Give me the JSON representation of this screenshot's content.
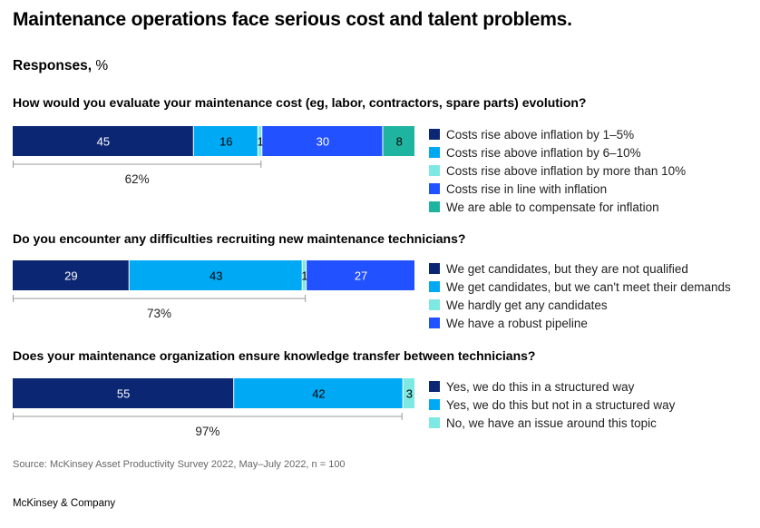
{
  "title": "Maintenance operations face serious cost and talent problems.",
  "subtitle_bold": "Responses,",
  "subtitle_unit": "%",
  "source": "Source: McKinsey Asset Productivity Survey 2022, May–July 2022, n = 100",
  "brand": "McKinsey & Company",
  "chart_data": [
    {
      "type": "bar",
      "orientation": "horizontal-stacked",
      "question": "How would you evaluate your maintenance cost (eg, labor, contractors, spare parts) evolution?",
      "series": [
        {
          "name": "Costs rise above inflation by 1–5%",
          "value": 45,
          "color": "#0b2672"
        },
        {
          "name": "Costs rise above inflation by 6–10%",
          "value": 16,
          "color": "#00a9f4"
        },
        {
          "name": "Costs rise above inflation by more than 10%",
          "value": 1,
          "color": "#7ee8e2"
        },
        {
          "name": "Costs rise in line with inflation",
          "value": 30,
          "color": "#2251ff"
        },
        {
          "name": "We are able to compensate for inflation",
          "value": 8,
          "color": "#1fb4a0"
        }
      ],
      "bracket_label": "62%",
      "bracket_segments": 3
    },
    {
      "type": "bar",
      "orientation": "horizontal-stacked",
      "question": "Do you encounter any difficulties recruiting new maintenance technicians?",
      "series": [
        {
          "name": "We get candidates, but they are not qualified",
          "value": 29,
          "color": "#0b2672"
        },
        {
          "name": "We get candidates, but we can't meet their demands",
          "value": 43,
          "color": "#00a9f4"
        },
        {
          "name": "We hardly get any candidates",
          "value": 1,
          "color": "#7ee8e2"
        },
        {
          "name": "We have a robust pipeline",
          "value": 27,
          "color": "#2251ff"
        }
      ],
      "bracket_label": "73%",
      "bracket_segments": 3
    },
    {
      "type": "bar",
      "orientation": "horizontal-stacked",
      "question": "Does your maintenance organization ensure knowledge transfer between technicians?",
      "series": [
        {
          "name": "Yes, we do this in a structured way",
          "value": 55,
          "color": "#0b2672"
        },
        {
          "name": "Yes, we do this but not in a structured way",
          "value": 42,
          "color": "#00a9f4"
        },
        {
          "name": "No, we have an issue around this topic",
          "value": 3,
          "color": "#7ee8e2"
        }
      ],
      "bracket_label": "97%",
      "bracket_segments": 2
    }
  ]
}
